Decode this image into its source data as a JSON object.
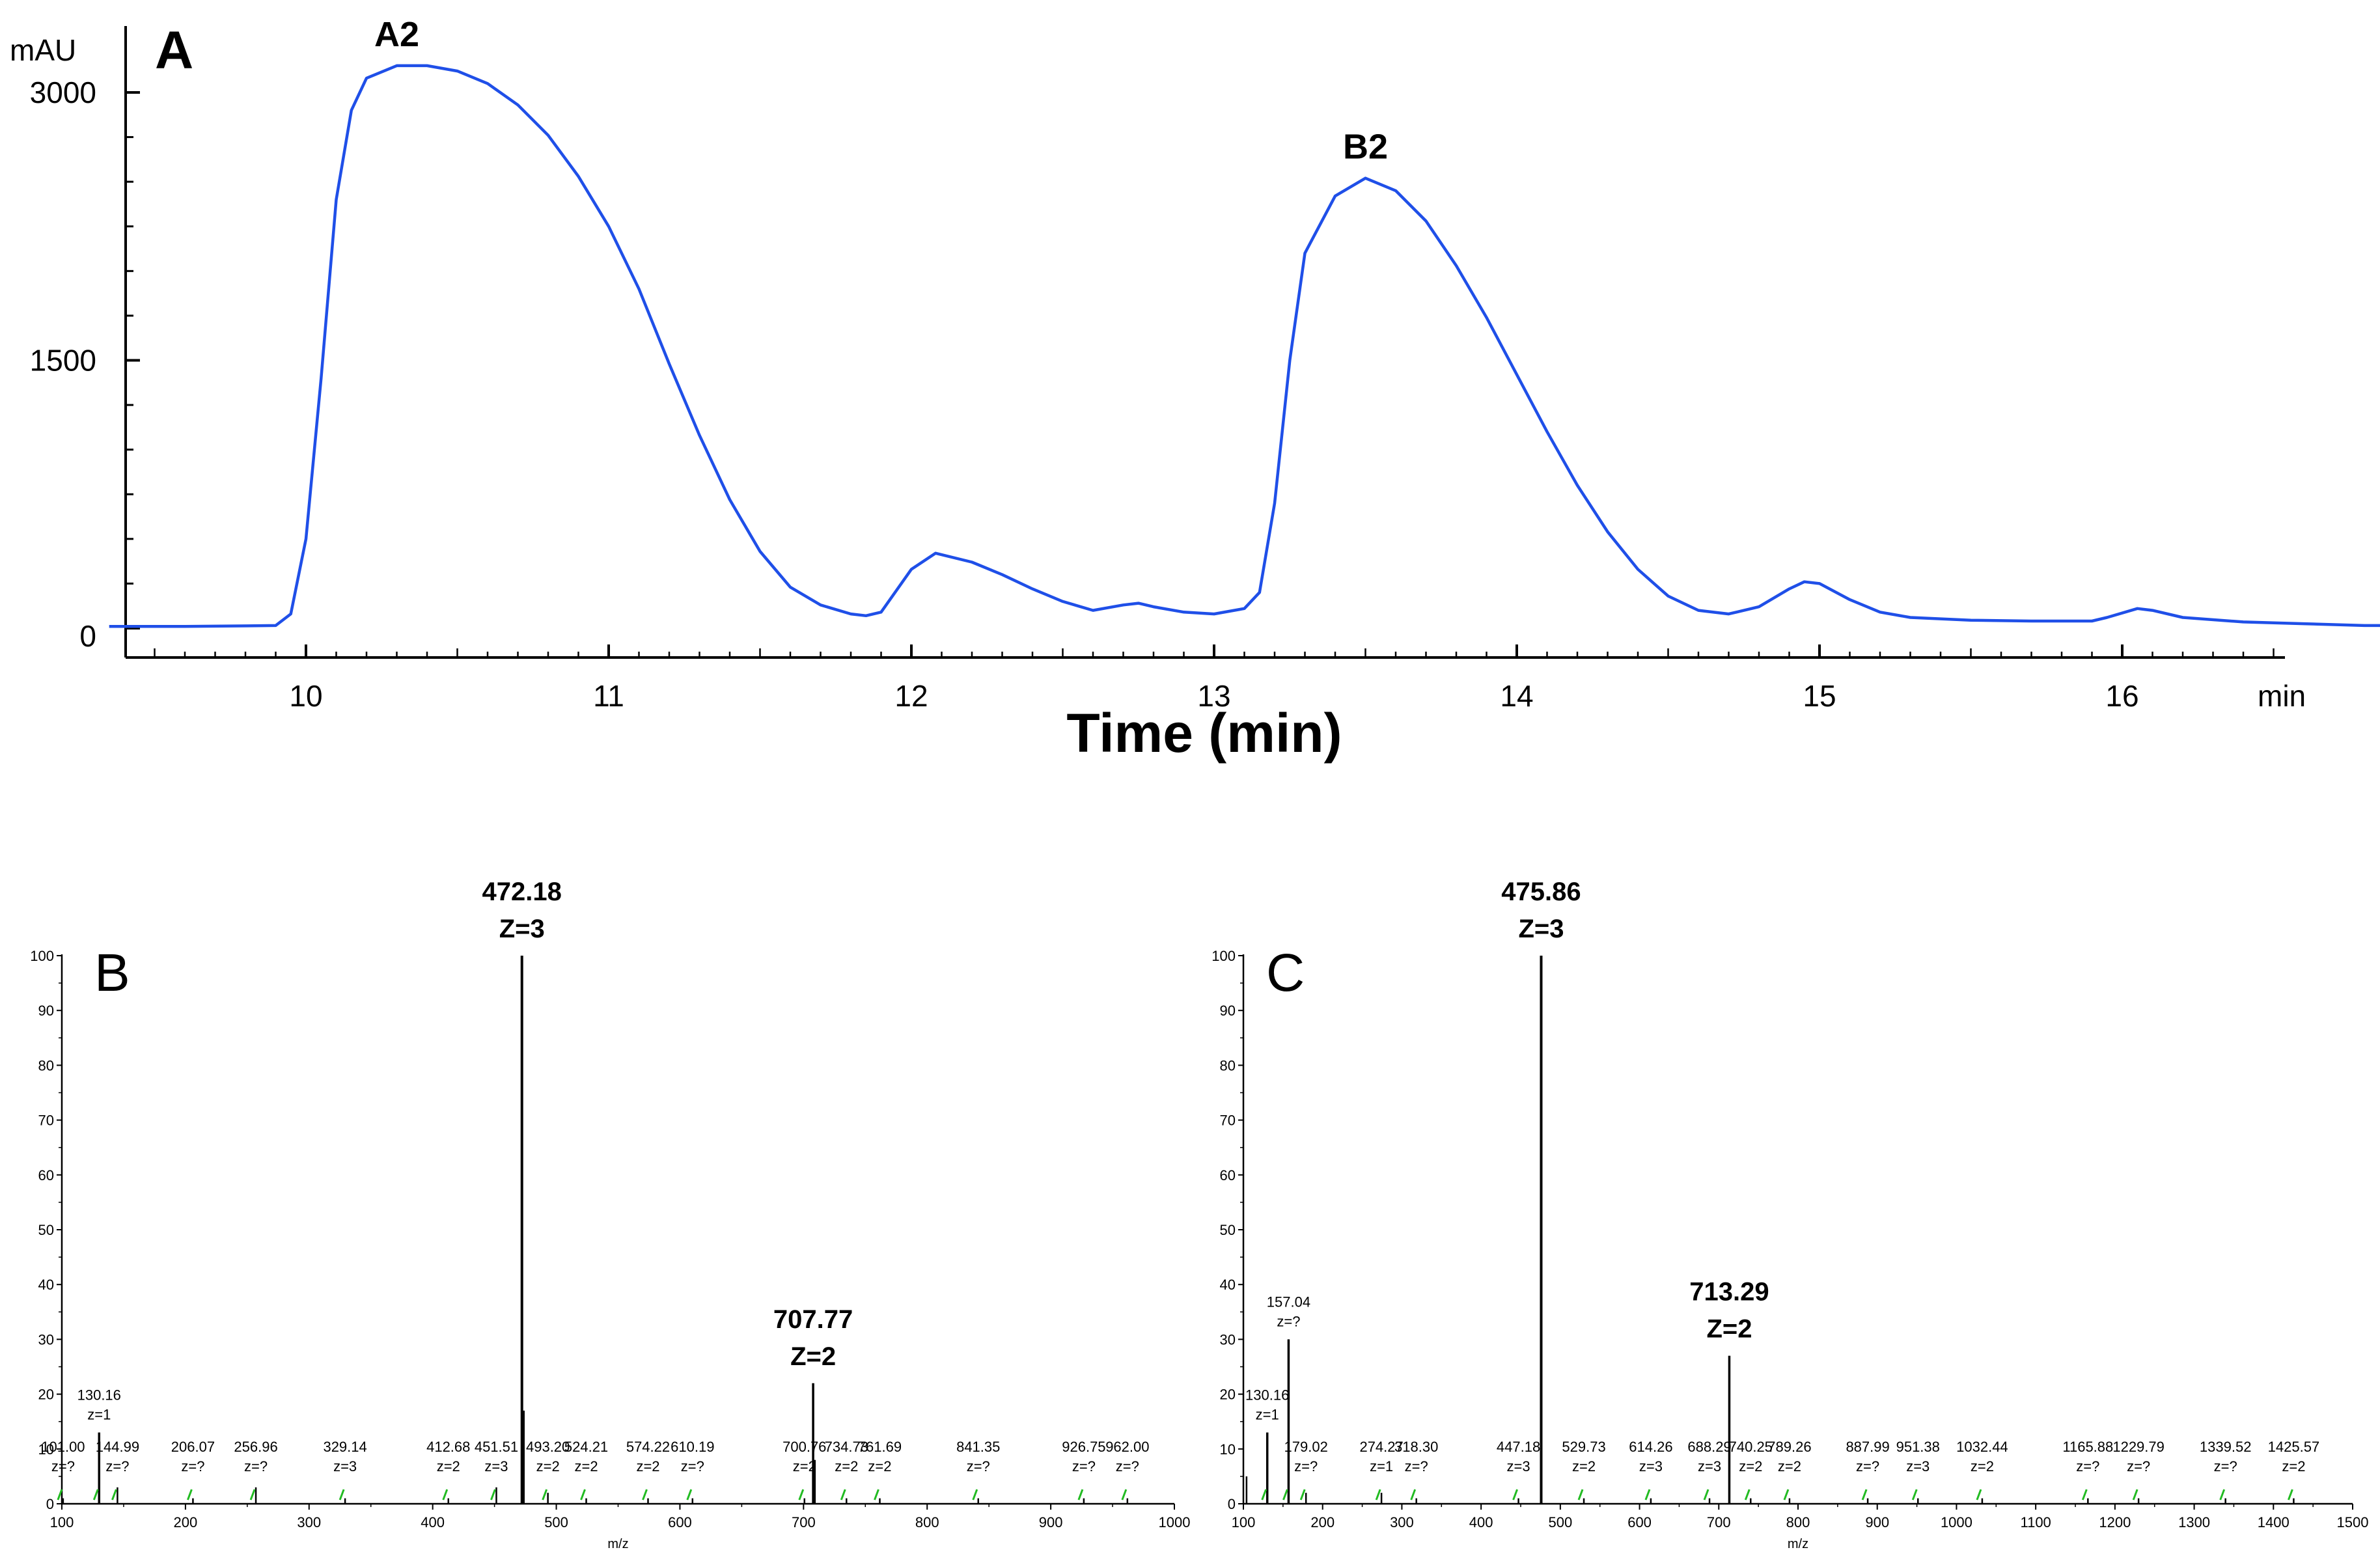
{
  "colors": {
    "trace": "#1f4fe8",
    "axis": "#000000",
    "peak": "#000000",
    "marker": "#22bb22"
  },
  "chart_data": [
    {
      "panel": "A",
      "type": "line",
      "ylabel": "mAU",
      "xlabel": "Time (min)",
      "x_unit": "min",
      "xlim": [
        9.35,
        17.0
      ],
      "ylim": [
        -150,
        3200
      ],
      "xticks": [
        10,
        11,
        12,
        13,
        14,
        15,
        16
      ],
      "yticks": [
        0,
        1500,
        3000
      ],
      "peak_labels": [
        {
          "text": "A2",
          "x": 10.3,
          "y": 3150
        },
        {
          "text": "B2",
          "x": 13.5,
          "y": 2520
        }
      ],
      "series": [
        {
          "values": [
            [
              9.35,
              10
            ],
            [
              9.6,
              10
            ],
            [
              9.9,
              15
            ],
            [
              9.95,
              80
            ],
            [
              10.0,
              500
            ],
            [
              10.05,
              1400
            ],
            [
              10.1,
              2400
            ],
            [
              10.15,
              2900
            ],
            [
              10.2,
              3080
            ],
            [
              10.3,
              3150
            ],
            [
              10.4,
              3150
            ],
            [
              10.5,
              3120
            ],
            [
              10.6,
              3050
            ],
            [
              10.7,
              2930
            ],
            [
              10.8,
              2760
            ],
            [
              10.9,
              2530
            ],
            [
              11.0,
              2250
            ],
            [
              11.1,
              1900
            ],
            [
              11.2,
              1480
            ],
            [
              11.3,
              1080
            ],
            [
              11.4,
              720
            ],
            [
              11.5,
              430
            ],
            [
              11.6,
              230
            ],
            [
              11.7,
              130
            ],
            [
              11.8,
              80
            ],
            [
              11.85,
              70
            ],
            [
              11.9,
              90
            ],
            [
              12.0,
              330
            ],
            [
              12.08,
              420
            ],
            [
              12.2,
              370
            ],
            [
              12.3,
              300
            ],
            [
              12.4,
              220
            ],
            [
              12.5,
              150
            ],
            [
              12.6,
              100
            ],
            [
              12.7,
              130
            ],
            [
              12.75,
              140
            ],
            [
              12.8,
              120
            ],
            [
              12.9,
              90
            ],
            [
              13.0,
              80
            ],
            [
              13.1,
              110
            ],
            [
              13.15,
              200
            ],
            [
              13.2,
              700
            ],
            [
              13.25,
              1500
            ],
            [
              13.3,
              2100
            ],
            [
              13.4,
              2420
            ],
            [
              13.5,
              2520
            ],
            [
              13.6,
              2450
            ],
            [
              13.7,
              2280
            ],
            [
              13.8,
              2030
            ],
            [
              13.9,
              1740
            ],
            [
              14.0,
              1420
            ],
            [
              14.1,
              1100
            ],
            [
              14.2,
              800
            ],
            [
              14.3,
              540
            ],
            [
              14.4,
              330
            ],
            [
              14.5,
              180
            ],
            [
              14.6,
              100
            ],
            [
              14.7,
              80
            ],
            [
              14.8,
              120
            ],
            [
              14.9,
              220
            ],
            [
              14.95,
              260
            ],
            [
              15.0,
              250
            ],
            [
              15.1,
              160
            ],
            [
              15.2,
              90
            ],
            [
              15.3,
              60
            ],
            [
              15.5,
              45
            ],
            [
              15.7,
              40
            ],
            [
              15.9,
              40
            ],
            [
              15.95,
              60
            ],
            [
              16.05,
              110
            ],
            [
              16.1,
              100
            ],
            [
              16.2,
              60
            ],
            [
              16.4,
              35
            ],
            [
              16.6,
              25
            ],
            [
              16.8,
              15
            ],
            [
              17.0,
              15
            ]
          ]
        }
      ]
    },
    {
      "panel": "B",
      "type": "bar",
      "xlabel": "m/z",
      "xlim": [
        100,
        1000
      ],
      "ylim": [
        0,
        100
      ],
      "xticks": [
        100,
        200,
        300,
        400,
        500,
        600,
        700,
        800,
        900,
        1000
      ],
      "yticks": [
        0,
        10,
        20,
        30,
        40,
        50,
        60,
        70,
        80,
        90,
        100
      ],
      "big_labels": [
        {
          "mz": "472.18",
          "z": "Z=3"
        },
        {
          "mz": "707.77",
          "z": "Z=2"
        }
      ],
      "peaks": [
        {
          "x": 101.0,
          "y": 1,
          "label": "101.00",
          "z": "z=?"
        },
        {
          "x": 130.16,
          "y": 13,
          "label": "130.16",
          "z": "z=1"
        },
        {
          "x": 144.99,
          "y": 3,
          "label": "144.99",
          "z": "z=?"
        },
        {
          "x": 206.07,
          "y": 1,
          "label": "206.07",
          "z": "z=?"
        },
        {
          "x": 256.96,
          "y": 3,
          "label": "256.96",
          "z": "z=?"
        },
        {
          "x": 329.14,
          "y": 1,
          "label": "329.14",
          "z": "z=3"
        },
        {
          "x": 412.68,
          "y": 1,
          "label": "412.68",
          "z": "z=2"
        },
        {
          "x": 451.51,
          "y": 3,
          "label": "451.51",
          "z": "z=3"
        },
        {
          "x": 472.18,
          "y": 100,
          "label": "",
          "z": ""
        },
        {
          "x": 473.5,
          "y": 17,
          "label": "",
          "z": ""
        },
        {
          "x": 493.2,
          "y": 2,
          "label": "493.20",
          "z": "z=2"
        },
        {
          "x": 524.21,
          "y": 1,
          "label": "524.21",
          "z": "z=2"
        },
        {
          "x": 574.22,
          "y": 1,
          "label": "574.22",
          "z": "z=2"
        },
        {
          "x": 610.19,
          "y": 1,
          "label": "610.19",
          "z": "z=?"
        },
        {
          "x": 700.76,
          "y": 1,
          "label": "700.76",
          "z": "z=2"
        },
        {
          "x": 707.77,
          "y": 22,
          "label": "",
          "z": ""
        },
        {
          "x": 709.2,
          "y": 8,
          "label": "",
          "z": ""
        },
        {
          "x": 734.73,
          "y": 1,
          "label": "734.73",
          "z": "z=2"
        },
        {
          "x": 761.69,
          "y": 1,
          "label": "761.69",
          "z": "z=2"
        },
        {
          "x": 841.35,
          "y": 1,
          "label": "841.35",
          "z": "z=?"
        },
        {
          "x": 926.75,
          "y": 1,
          "label": "926.75",
          "z": "z=?"
        },
        {
          "x": 962.0,
          "y": 1,
          "label": "962.00",
          "z": "z=?"
        }
      ]
    },
    {
      "panel": "C",
      "type": "bar",
      "xlabel": "m/z",
      "xlim": [
        100,
        1500
      ],
      "ylim": [
        0,
        100
      ],
      "xticks": [
        100,
        200,
        300,
        400,
        500,
        600,
        700,
        800,
        900,
        1000,
        1100,
        1200,
        1300,
        1400,
        1500
      ],
      "yticks": [
        0,
        10,
        20,
        30,
        40,
        50,
        60,
        70,
        80,
        90,
        100
      ],
      "big_labels": [
        {
          "mz": "475.86",
          "z": "Z=3"
        },
        {
          "mz": "713.29",
          "z": "Z=2"
        }
      ],
      "peaks": [
        {
          "x": 104.0,
          "y": 5,
          "label": "",
          "z": ""
        },
        {
          "x": 130.16,
          "y": 13,
          "label": "130.16",
          "z": "z=1"
        },
        {
          "x": 157.04,
          "y": 30,
          "label": "157.04",
          "z": "z=?"
        },
        {
          "x": 179.02,
          "y": 2,
          "label": "179.02",
          "z": "z=?"
        },
        {
          "x": 274.27,
          "y": 2,
          "label": "274.27",
          "z": "z=1"
        },
        {
          "x": 318.3,
          "y": 1,
          "label": "318.30",
          "z": "z=?"
        },
        {
          "x": 447.18,
          "y": 1,
          "label": "447.18",
          "z": "z=3"
        },
        {
          "x": 475.86,
          "y": 100,
          "label": "",
          "z": ""
        },
        {
          "x": 529.73,
          "y": 1,
          "label": "529.73",
          "z": "z=2"
        },
        {
          "x": 614.26,
          "y": 1,
          "label": "614.26",
          "z": "z=3"
        },
        {
          "x": 688.29,
          "y": 1,
          "label": "688.29",
          "z": "z=3"
        },
        {
          "x": 713.29,
          "y": 27,
          "label": "",
          "z": ""
        },
        {
          "x": 740.25,
          "y": 1,
          "label": "740.25",
          "z": "z=2"
        },
        {
          "x": 789.26,
          "y": 1,
          "label": "789.26",
          "z": "z=2"
        },
        {
          "x": 887.99,
          "y": 1,
          "label": "887.99",
          "z": "z=?"
        },
        {
          "x": 951.38,
          "y": 1,
          "label": "951.38",
          "z": "z=3"
        },
        {
          "x": 1032.44,
          "y": 1,
          "label": "1032.44",
          "z": "z=2"
        },
        {
          "x": 1165.88,
          "y": 1,
          "label": "1165.88",
          "z": "z=?"
        },
        {
          "x": 1229.79,
          "y": 1,
          "label": "1229.79",
          "z": "z=?"
        },
        {
          "x": 1339.52,
          "y": 1,
          "label": "1339.52",
          "z": "z=?"
        },
        {
          "x": 1425.57,
          "y": 1,
          "label": "1425.57",
          "z": "z=2"
        }
      ]
    }
  ]
}
